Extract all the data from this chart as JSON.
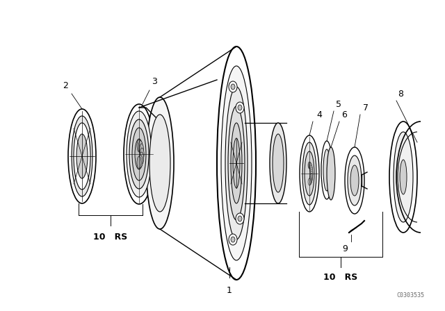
{
  "background_color": "#ffffff",
  "line_color": "#000000",
  "figure_width": 6.4,
  "figure_height": 4.48,
  "dpi": 100,
  "watermark": "C0303535"
}
